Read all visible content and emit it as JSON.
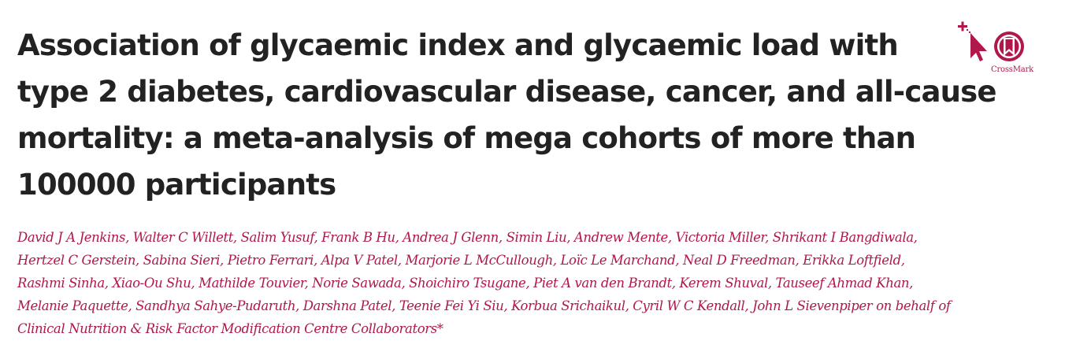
{
  "title_lines": [
    "Association of glycaemic index and glycaemic load with",
    "type 2 diabetes, cardiovascular disease, cancer, and all-cause",
    "mortality: a meta-analysis of mega cohorts of more than",
    "100000 participants"
  ],
  "author_lines": [
    "David J A Jenkins, Walter C Willett, Salim Yusuf, Frank B Hu, Andrea J Glenn, Simin Liu, Andrew Mente, Victoria Miller, Shrikant I Bangdiwala,",
    "Hertzel C Gerstein, Sabina Sieri, Pietro Ferrari, Alpa V Patel, Marjorie L McCullough, Loïc Le Marchand, Neal D Freedman, Erikka Loftfield,",
    "Rashmi Sinha, Xiao-Ou Shu, Mathilde Touvier, Norie Sawada, Shoichiro Tsugane, Piet A van den Brandt, Kerem Shuval, Tauseef Ahmad Khan,",
    "Melanie Paquette, Sandhya Sahye-Pudaruth, Darshna Patel, Teenie Fei Yi Siu, Korbua Srichaikul, Cyril W C Kendall, John L Sievenpiper on behalf of",
    "Clinical Nutrition & Risk Factor Modification Centre Collaborators*"
  ],
  "crossmark": {
    "label": "CrossMark",
    "icon": "crossmark-icon"
  },
  "colors": {
    "title": "#222222",
    "authors": "#b0174a",
    "crossmark": "#b0174a"
  }
}
